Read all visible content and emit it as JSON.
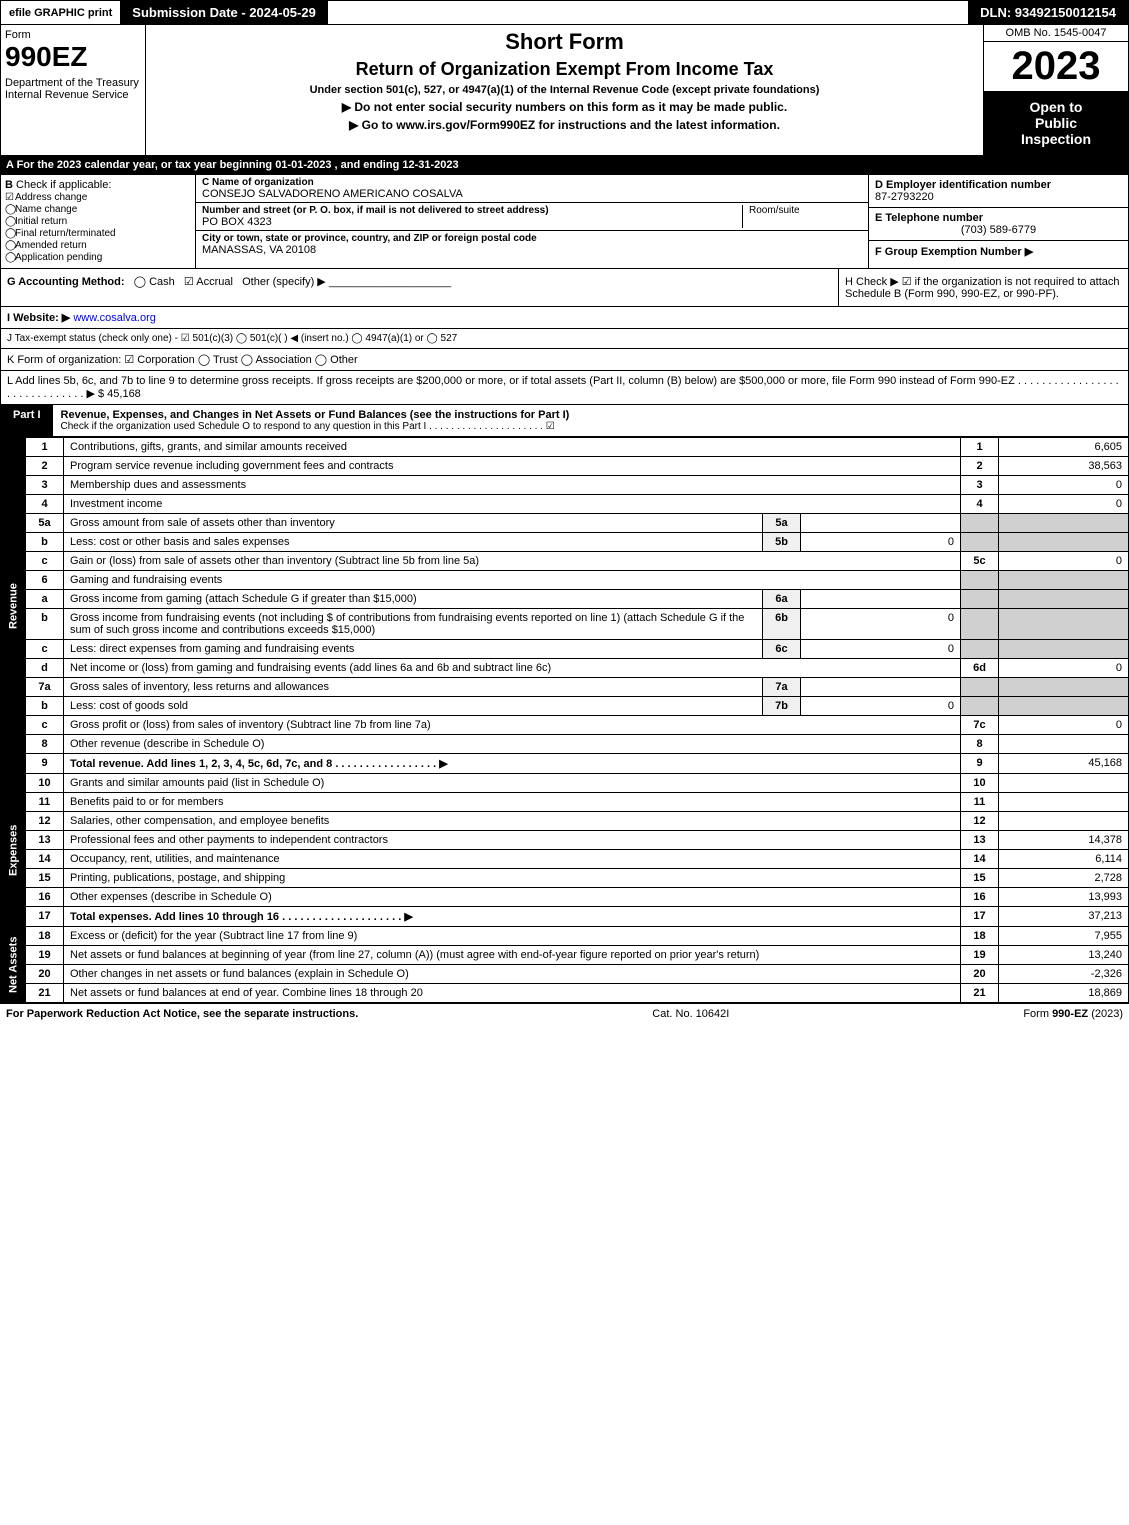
{
  "top": {
    "efile": "efile GRAPHIC print",
    "sub_date": "Submission Date - 2024-05-29",
    "dln": "DLN: 93492150012154"
  },
  "header": {
    "form_word": "Form",
    "form_num": "990EZ",
    "dept": "Department of the Treasury\nInternal Revenue Service",
    "short_form": "Short Form",
    "return_title": "Return of Organization Exempt From Income Tax",
    "under_sec": "Under section 501(c), 527, or 4947(a)(1) of the Internal Revenue Code (except private foundations)",
    "no_ssn": "▶ Do not enter social security numbers on this form as it may be made public.",
    "goto": "▶ Go to www.irs.gov/Form990EZ for instructions and the latest information.",
    "omb": "OMB No. 1545-0047",
    "year": "2023",
    "open1": "Open to",
    "open2": "Public",
    "open3": "Inspection"
  },
  "a": "A  For the 2023 calendar year, or tax year beginning 01-01-2023 , and ending 12-31-2023",
  "b": {
    "hdr": "B",
    "label": "Check if applicable:",
    "items": [
      "Address change",
      "Name change",
      "Initial return",
      "Final return/terminated",
      "Amended return",
      "Application pending"
    ],
    "checked": [
      true,
      false,
      false,
      false,
      false,
      false
    ]
  },
  "c": {
    "name_lbl": "C Name of organization",
    "name": "CONSEJO SALVADORENO AMERICANO COSALVA",
    "street_lbl": "Number and street (or P. O. box, if mail is not delivered to street address)",
    "room_lbl": "Room/suite",
    "street": "PO BOX 4323",
    "city_lbl": "City or town, state or province, country, and ZIP or foreign postal code",
    "city": "MANASSAS, VA  20108"
  },
  "d": {
    "lbl": "D Employer identification number",
    "val": "87-2793220"
  },
  "e": {
    "lbl": "E Telephone number",
    "val": "(703) 589-6779"
  },
  "f": {
    "lbl": "F Group Exemption Number   ▶"
  },
  "g": {
    "lbl": "G Accounting Method:",
    "cash": "Cash",
    "accrual": "Accrual",
    "other": "Other (specify) ▶"
  },
  "h": {
    "text": "H   Check ▶ ☑ if the organization is not required to attach Schedule B (Form 990, 990-EZ, or 990-PF)."
  },
  "i": {
    "lbl": "I Website: ▶",
    "val": "www.cosalva.org"
  },
  "j": "J Tax-exempt status (check only one) - ☑ 501(c)(3)  ◯ 501(c)(  ) ◀ (insert no.)  ◯ 4947(a)(1) or  ◯ 527",
  "k": "K Form of organization:  ☑ Corporation  ◯ Trust  ◯ Association  ◯ Other",
  "l": {
    "text": "L Add lines 5b, 6c, and 7b to line 9 to determine gross receipts. If gross receipts are $200,000 or more, or if total assets (Part II, column (B) below) are $500,000 or more, file Form 990 instead of Form 990-EZ . . . . . . . . . . . . . . . . . . . . . . . . . . . . . .  ▶ $",
    "val": "45,168"
  },
  "part1": {
    "tag": "Part I",
    "title": "Revenue, Expenses, and Changes in Net Assets or Fund Balances (see the instructions for Part I)",
    "sub": "Check if the organization used Schedule O to respond to any question in this Part I . . . . . . . . . . . . . . . . . . . . .  ☑"
  },
  "sections": {
    "revenue": "Revenue",
    "expenses": "Expenses",
    "net": "Net Assets"
  },
  "lines": {
    "l1": {
      "n": "1",
      "d": "Contributions, gifts, grants, and similar amounts received",
      "rn": "1",
      "rv": "6,605"
    },
    "l2": {
      "n": "2",
      "d": "Program service revenue including government fees and contracts",
      "rn": "2",
      "rv": "38,563"
    },
    "l3": {
      "n": "3",
      "d": "Membership dues and assessments",
      "rn": "3",
      "rv": "0"
    },
    "l4": {
      "n": "4",
      "d": "Investment income",
      "rn": "4",
      "rv": "0"
    },
    "l5a": {
      "n": "5a",
      "d": "Gross amount from sale of assets other than inventory",
      "sn": "5a",
      "sv": ""
    },
    "l5b": {
      "n": "b",
      "d": "Less: cost or other basis and sales expenses",
      "sn": "5b",
      "sv": "0"
    },
    "l5c": {
      "n": "c",
      "d": "Gain or (loss) from sale of assets other than inventory (Subtract line 5b from line 5a)",
      "rn": "5c",
      "rv": "0"
    },
    "l6": {
      "n": "6",
      "d": "Gaming and fundraising events"
    },
    "l6a": {
      "n": "a",
      "d": "Gross income from gaming (attach Schedule G if greater than $15,000)",
      "sn": "6a",
      "sv": ""
    },
    "l6b": {
      "n": "b",
      "d": "Gross income from fundraising events (not including $                   of contributions from fundraising events reported on line 1) (attach Schedule G if the sum of such gross income and contributions exceeds $15,000)",
      "sn": "6b",
      "sv": "0"
    },
    "l6c": {
      "n": "c",
      "d": "Less: direct expenses from gaming and fundraising events",
      "sn": "6c",
      "sv": "0"
    },
    "l6d": {
      "n": "d",
      "d": "Net income or (loss) from gaming and fundraising events (add lines 6a and 6b and subtract line 6c)",
      "rn": "6d",
      "rv": "0"
    },
    "l7a": {
      "n": "7a",
      "d": "Gross sales of inventory, less returns and allowances",
      "sn": "7a",
      "sv": ""
    },
    "l7b": {
      "n": "b",
      "d": "Less: cost of goods sold",
      "sn": "7b",
      "sv": "0"
    },
    "l7c": {
      "n": "c",
      "d": "Gross profit or (loss) from sales of inventory (Subtract line 7b from line 7a)",
      "rn": "7c",
      "rv": "0"
    },
    "l8": {
      "n": "8",
      "d": "Other revenue (describe in Schedule O)",
      "rn": "8",
      "rv": ""
    },
    "l9": {
      "n": "9",
      "d": "Total revenue. Add lines 1, 2, 3, 4, 5c, 6d, 7c, and 8   . . . . . . . . . . . . . . . . .  ▶",
      "rn": "9",
      "rv": "45,168"
    },
    "l10": {
      "n": "10",
      "d": "Grants and similar amounts paid (list in Schedule O)",
      "rn": "10",
      "rv": ""
    },
    "l11": {
      "n": "11",
      "d": "Benefits paid to or for members",
      "rn": "11",
      "rv": ""
    },
    "l12": {
      "n": "12",
      "d": "Salaries, other compensation, and employee benefits",
      "rn": "12",
      "rv": ""
    },
    "l13": {
      "n": "13",
      "d": "Professional fees and other payments to independent contractors",
      "rn": "13",
      "rv": "14,378"
    },
    "l14": {
      "n": "14",
      "d": "Occupancy, rent, utilities, and maintenance",
      "rn": "14",
      "rv": "6,114"
    },
    "l15": {
      "n": "15",
      "d": "Printing, publications, postage, and shipping",
      "rn": "15",
      "rv": "2,728"
    },
    "l16": {
      "n": "16",
      "d": "Other expenses (describe in Schedule O)",
      "rn": "16",
      "rv": "13,993"
    },
    "l17": {
      "n": "17",
      "d": "Total expenses. Add lines 10 through 16     . . . . . . . . . . . . . . . . . . . .  ▶",
      "rn": "17",
      "rv": "37,213"
    },
    "l18": {
      "n": "18",
      "d": "Excess or (deficit) for the year (Subtract line 17 from line 9)",
      "rn": "18",
      "rv": "7,955"
    },
    "l19": {
      "n": "19",
      "d": "Net assets or fund balances at beginning of year (from line 27, column (A)) (must agree with end-of-year figure reported on prior year's return)",
      "rn": "19",
      "rv": "13,240"
    },
    "l20": {
      "n": "20",
      "d": "Other changes in net assets or fund balances (explain in Schedule O)",
      "rn": "20",
      "rv": "-2,326"
    },
    "l21": {
      "n": "21",
      "d": "Net assets or fund balances at end of year. Combine lines 18 through 20",
      "rn": "21",
      "rv": "18,869"
    }
  },
  "footer": {
    "left": "For Paperwork Reduction Act Notice, see the separate instructions.",
    "mid": "Cat. No. 10642I",
    "right": "Form 990-EZ (2023)"
  }
}
